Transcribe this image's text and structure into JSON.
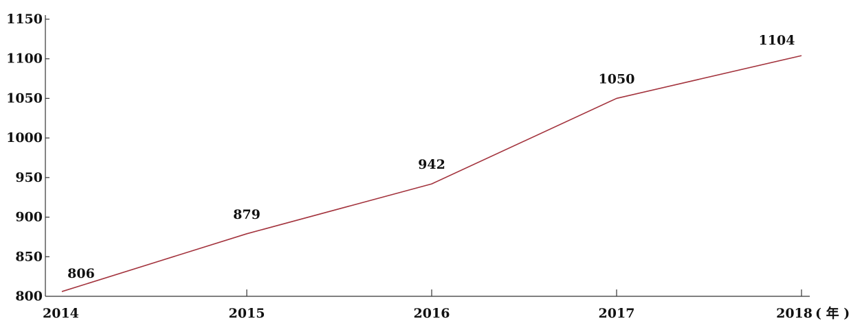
{
  "chart_data": {
    "type": "line",
    "title": "",
    "xlabel": "( 年 )",
    "ylabel": "",
    "x": [
      "2014",
      "2015",
      "2016",
      "2017",
      "2018"
    ],
    "series": [
      {
        "values": [
          806,
          879,
          942,
          1050,
          1104
        ],
        "color": "#a3333d"
      }
    ],
    "ylim": [
      800,
      1150
    ],
    "yticks": [
      "800",
      "850",
      "900",
      "950",
      "1000",
      "1050",
      "1100",
      "1150"
    ],
    "grid": false,
    "legend": "none"
  }
}
